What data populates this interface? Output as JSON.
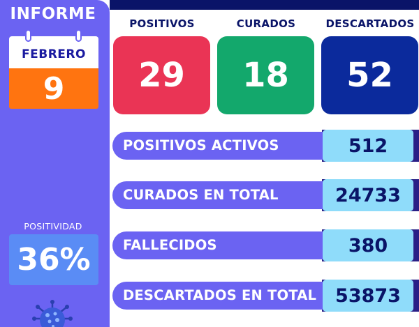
{
  "sidebar": {
    "title": "INFORME",
    "calendar": {
      "month": "FEBRERO",
      "day": "9"
    },
    "positivity": {
      "label": "POSITIVIDAD",
      "value": "36%"
    },
    "icon": "virus-icon"
  },
  "stats": [
    {
      "label": "POSITIVOS",
      "value": "29",
      "color": "#ea3455"
    },
    {
      "label": "CURADOS",
      "value": "18",
      "color": "#13a86c"
    },
    {
      "label": "DESCARTADOS",
      "value": "52",
      "color": "#0b2a9c"
    }
  ],
  "rows": [
    {
      "label": "POSITIVOS ACTIVOS",
      "value": "512"
    },
    {
      "label": "CURADOS EN TOTAL",
      "value": "24733"
    },
    {
      "label": "FALLECIDOS",
      "value": "380"
    },
    {
      "label": "DESCARTADOS EN TOTAL",
      "value": "53873"
    }
  ],
  "colors": {
    "sidebar": "#6b63f2",
    "navy": "#0a1468",
    "orange": "#ff7410",
    "light_blue": "#8fdcfa"
  }
}
